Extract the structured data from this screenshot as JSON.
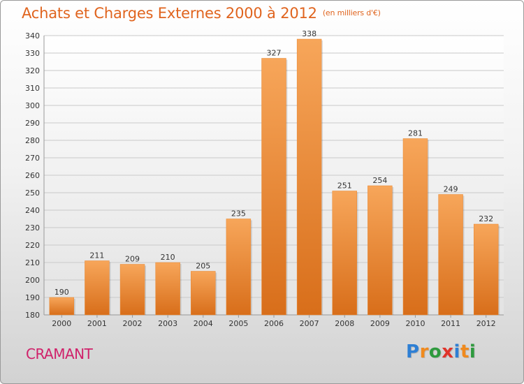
{
  "header": {
    "title": "Achats et Charges Externes 2000 à 2012",
    "unit": "(en milliers d'€)"
  },
  "footer": {
    "place": "CRAMANT",
    "logo": "Proxiti"
  },
  "colors": {
    "title": "#e0641e",
    "bar_light": "#f7a65a",
    "bar_dark": "#d86e1a",
    "place": "#d0216a"
  },
  "chart_data": {
    "type": "bar",
    "title": "Achats et Charges Externes 2000 à 2012",
    "subtitle": "(en milliers d'€)",
    "xlabel": "",
    "ylabel": "",
    "categories": [
      "2000",
      "2001",
      "2002",
      "2003",
      "2004",
      "2005",
      "2006",
      "2007",
      "2008",
      "2009",
      "2010",
      "2011",
      "2012"
    ],
    "values": [
      190,
      211,
      209,
      210,
      205,
      235,
      327,
      338,
      251,
      254,
      281,
      249,
      232
    ],
    "ylim": [
      180,
      340
    ],
    "yticks": [
      180,
      190,
      200,
      210,
      220,
      230,
      240,
      250,
      260,
      270,
      280,
      290,
      300,
      310,
      320,
      330,
      340
    ],
    "grid": true,
    "legend": "none"
  }
}
